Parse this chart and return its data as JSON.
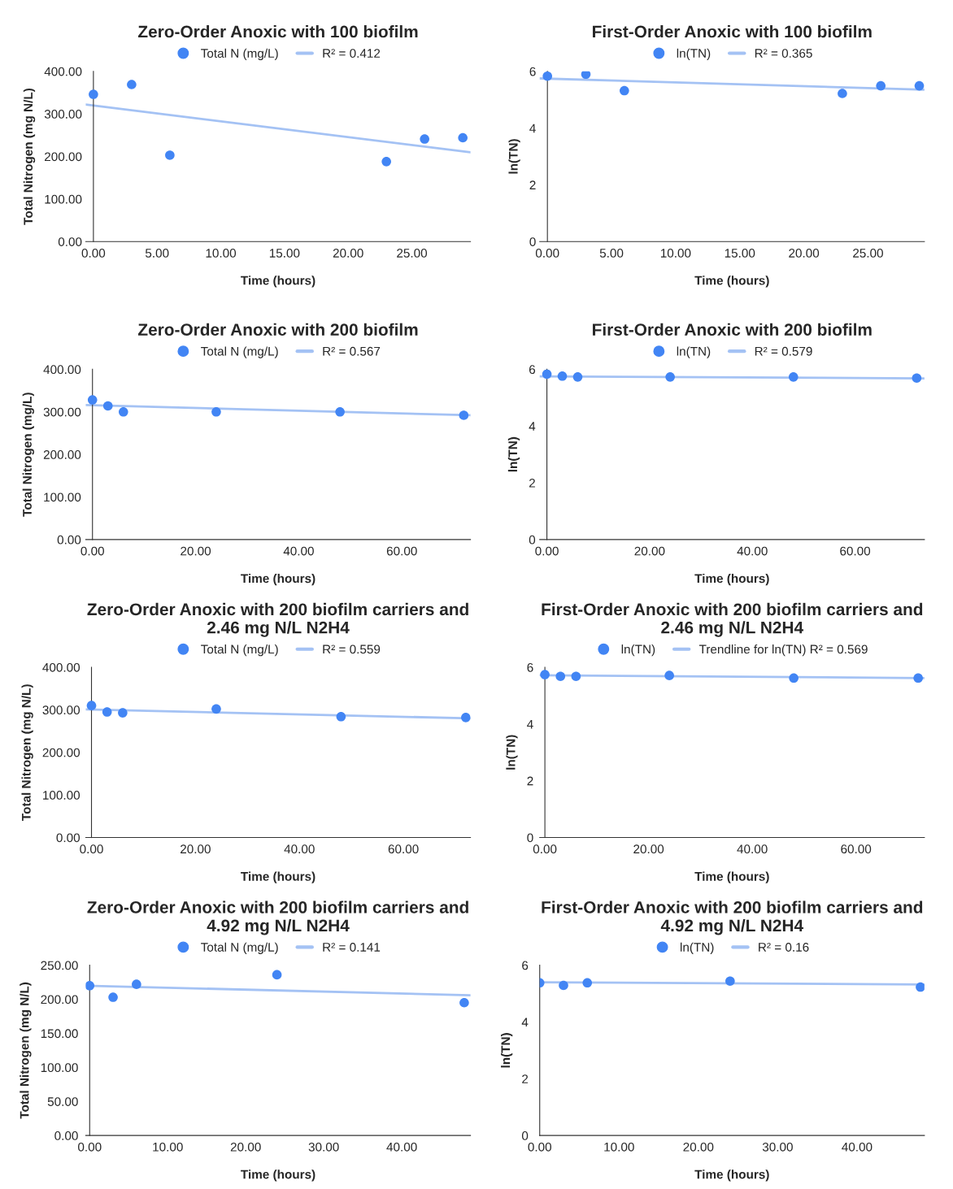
{
  "chart_data": [
    {
      "type": "scatter",
      "title": "Zero-Order Anoxic with 100 biofilm",
      "xlabel": "Time (hours)",
      "ylabel": "Total Nitrogen (mg N/L)",
      "legend": "top",
      "grid": false,
      "xlim": [
        -0.6,
        29.6
      ],
      "xticks": [
        {
          "value": 0,
          "label": "0.00"
        },
        {
          "value": 5,
          "label": "5.00"
        },
        {
          "value": 10,
          "label": "10.00"
        },
        {
          "value": 15,
          "label": "15.00"
        },
        {
          "value": 20,
          "label": "20.00"
        },
        {
          "value": 25,
          "label": "25.00"
        }
      ],
      "ylim": [
        0,
        400
      ],
      "yticks": [
        {
          "value": 0,
          "label": "0.00"
        },
        {
          "value": 100,
          "label": "100.00"
        },
        {
          "value": 200,
          "label": "200.00"
        },
        {
          "value": 300,
          "label": "300.00"
        },
        {
          "value": 400,
          "label": "400.00"
        }
      ],
      "series": [
        {
          "name": "Total N (mg/L)",
          "color": "#4285f4",
          "marker": "circle",
          "x": [
            0,
            3,
            6,
            23,
            26,
            29
          ],
          "values": [
            346,
            369,
            203,
            188,
            241,
            244
          ]
        },
        {
          "name": "R² = 0.412",
          "type": "line",
          "color": "#a4c2f4",
          "marker": "none",
          "x": [
            -0.6,
            29.6
          ],
          "values": [
            322,
            210
          ]
        }
      ]
    },
    {
      "type": "scatter",
      "title": "First-Order Anoxic with 100 biofilm",
      "xlabel": "Time (hours)",
      "ylabel": "ln(TN)",
      "legend": "top",
      "grid": false,
      "xlim": [
        -0.6,
        29.4
      ],
      "xticks": [
        {
          "value": 0,
          "label": "0.00"
        },
        {
          "value": 5,
          "label": "5.00"
        },
        {
          "value": 10,
          "label": "10.00"
        },
        {
          "value": 15,
          "label": "15.00"
        },
        {
          "value": 20,
          "label": "20.00"
        },
        {
          "value": 25,
          "label": "25.00"
        }
      ],
      "ylim": [
        0,
        6
      ],
      "yticks": [
        0,
        2,
        4,
        6
      ],
      "series": [
        {
          "name": "ln(TN)",
          "color": "#4285f4",
          "marker": "circle",
          "x": [
            0,
            3,
            6,
            23,
            26,
            29
          ],
          "values": [
            5.83,
            5.9,
            5.32,
            5.22,
            5.49,
            5.49
          ]
        },
        {
          "name": "R² = 0.365",
          "type": "line",
          "color": "#a4c2f4",
          "marker": "none",
          "x": [
            -0.6,
            29.4
          ],
          "values": [
            5.75,
            5.35
          ]
        }
      ]
    },
    {
      "type": "scatter",
      "title": "Zero-Order Anoxic with 200 biofilm",
      "xlabel": "Time (hours)",
      "ylabel": "Total Nitrogen (mg/L)",
      "legend": "top",
      "grid": false,
      "xlim": [
        -1.3,
        73.3
      ],
      "xticks": [
        {
          "value": 0,
          "label": "0.00"
        },
        {
          "value": 20,
          "label": "20.00"
        },
        {
          "value": 40,
          "label": "40.00"
        },
        {
          "value": 60,
          "label": "60.00"
        }
      ],
      "ylim": [
        0,
        400
      ],
      "yticks": [
        {
          "value": 0,
          "label": "0.00"
        },
        {
          "value": 100,
          "label": "100.00"
        },
        {
          "value": 200,
          "label": "200.00"
        },
        {
          "value": 300,
          "label": "300.00"
        },
        {
          "value": 400,
          "label": "400.00"
        }
      ],
      "series": [
        {
          "name": "Total N (mg/L)",
          "color": "#4285f4",
          "marker": "circle",
          "x": [
            0,
            3,
            6,
            24,
            48,
            72
          ],
          "values": [
            328,
            314,
            300,
            300,
            300,
            292
          ]
        },
        {
          "name": "R² = 0.567",
          "type": "line",
          "color": "#a4c2f4",
          "marker": "none",
          "x": [
            -1.3,
            73.3
          ],
          "values": [
            316,
            292
          ]
        }
      ]
    },
    {
      "type": "scatter",
      "title": "First-Order Anoxic with 200 biofilm",
      "xlabel": "Time (hours)",
      "ylabel": "ln(TN)",
      "legend": "top",
      "grid": false,
      "xlim": [
        -1.4,
        73.5
      ],
      "xticks": [
        {
          "value": 0,
          "label": "0.00"
        },
        {
          "value": 20,
          "label": "20.00"
        },
        {
          "value": 40,
          "label": "40.00"
        },
        {
          "value": 60,
          "label": "60.00"
        }
      ],
      "ylim": [
        0,
        6
      ],
      "yticks": [
        0,
        2,
        4,
        6
      ],
      "series": [
        {
          "name": "ln(TN)",
          "color": "#4285f4",
          "marker": "circle",
          "x": [
            0,
            3,
            6,
            24,
            48,
            72
          ],
          "values": [
            5.83,
            5.76,
            5.73,
            5.73,
            5.73,
            5.69
          ]
        },
        {
          "name": "R² = 0.579",
          "type": "line",
          "color": "#a4c2f4",
          "marker": "none",
          "x": [
            -1.4,
            73.5
          ],
          "values": [
            5.75,
            5.68
          ]
        }
      ]
    },
    {
      "type": "scatter",
      "title": "Zero-Order Anoxic with 200 biofilm carriers and 2.46 mg N/L N2H4",
      "xlabel": "Time (hours)",
      "ylabel": "Total Nitrogen (mg N/L)",
      "legend": "top",
      "grid": false,
      "xlim": [
        -1.1,
        72.9
      ],
      "xticks": [
        {
          "value": 0,
          "label": "0.00"
        },
        {
          "value": 20,
          "label": "20.00"
        },
        {
          "value": 40,
          "label": "40.00"
        },
        {
          "value": 60,
          "label": "60.00"
        }
      ],
      "ylim": [
        0,
        400
      ],
      "yticks": [
        {
          "value": 0,
          "label": "0.00"
        },
        {
          "value": 100,
          "label": "100.00"
        },
        {
          "value": 200,
          "label": "200.00"
        },
        {
          "value": 300,
          "label": "300.00"
        },
        {
          "value": 400,
          "label": "400.00"
        }
      ],
      "series": [
        {
          "name": "Total N (mg/L)",
          "color": "#4285f4",
          "marker": "circle",
          "x": [
            0,
            3,
            6,
            24,
            48,
            72
          ],
          "values": [
            310,
            295,
            293,
            302,
            284,
            282
          ]
        },
        {
          "name": "R² = 0.559",
          "type": "line",
          "color": "#a4c2f4",
          "marker": "none",
          "x": [
            -1.1,
            72.9
          ],
          "values": [
            301,
            280
          ]
        }
      ]
    },
    {
      "type": "scatter",
      "title": "First-Order Anoxic with 200 biofilm carriers and 2.46 mg N/L N2H4",
      "xlabel": "Time (hours)",
      "ylabel": "ln(TN)",
      "legend": "top",
      "grid": false,
      "xlim": [
        -1.0,
        73.2
      ],
      "xticks": [
        {
          "value": 0,
          "label": "0.00"
        },
        {
          "value": 20,
          "label": "20.00"
        },
        {
          "value": 40,
          "label": "40.00"
        },
        {
          "value": 60,
          "label": "60.00"
        }
      ],
      "ylim": [
        0,
        6
      ],
      "yticks": [
        0,
        2,
        4,
        6
      ],
      "series": [
        {
          "name": "ln(TN)",
          "color": "#4285f4",
          "marker": "circle",
          "x": [
            0,
            3,
            6,
            24,
            48,
            72
          ],
          "values": [
            5.74,
            5.68,
            5.68,
            5.71,
            5.62,
            5.62
          ]
        },
        {
          "name": "Trendline for ln(TN) R² = 0.569",
          "type": "line",
          "color": "#a4c2f4",
          "marker": "none",
          "x": [
            -1.0,
            73.2
          ],
          "values": [
            5.72,
            5.62
          ]
        }
      ]
    },
    {
      "type": "scatter",
      "title": "Zero-Order Anoxic with 200 biofilm carriers and 4.92 mg N/L N2H4",
      "xlabel": "Time (hours)",
      "ylabel": "Total Nitrogen (mg N/L)",
      "legend": "top",
      "grid": false,
      "xlim": [
        -0.5,
        48.8
      ],
      "xticks": [
        {
          "value": 0,
          "label": "0.00"
        },
        {
          "value": 10,
          "label": "10.00"
        },
        {
          "value": 20,
          "label": "20.00"
        },
        {
          "value": 30,
          "label": "30.00"
        },
        {
          "value": 40,
          "label": "40.00"
        }
      ],
      "ylim": [
        0,
        250
      ],
      "yticks": [
        {
          "value": 0,
          "label": "0.00"
        },
        {
          "value": 50,
          "label": "50.00"
        },
        {
          "value": 100,
          "label": "100.00"
        },
        {
          "value": 150,
          "label": "150.00"
        },
        {
          "value": 200,
          "label": "200.00"
        },
        {
          "value": 250,
          "label": "250.00"
        }
      ],
      "series": [
        {
          "name": "Total N (mg/L)",
          "color": "#4285f4",
          "marker": "circle",
          "x": [
            0,
            3,
            6,
            24,
            48
          ],
          "values": [
            220,
            203,
            222,
            236,
            195
          ]
        },
        {
          "name": "R² = 0.141",
          "type": "line",
          "color": "#a4c2f4",
          "marker": "none",
          "x": [
            -0.5,
            48.8
          ],
          "values": [
            220,
            206
          ]
        }
      ]
    },
    {
      "type": "scatter",
      "title": "First-Order Anoxic with 200 biofilm carriers and 4.92 mg N/L N2H4",
      "xlabel": "Time (hours)",
      "ylabel": "ln(TN)",
      "legend": "top",
      "grid": false,
      "xlim": [
        0,
        48.5
      ],
      "xticks": [
        {
          "value": 0,
          "label": "0.00"
        },
        {
          "value": 10,
          "label": "10.00"
        },
        {
          "value": 20,
          "label": "20.00"
        },
        {
          "value": 30,
          "label": "30.00"
        },
        {
          "value": 40,
          "label": "40.00"
        }
      ],
      "ylim": [
        0,
        6
      ],
      "yticks": [
        0,
        2,
        4,
        6
      ],
      "series": [
        {
          "name": "ln(TN)",
          "color": "#4285f4",
          "marker": "circle",
          "x": [
            0,
            3,
            6,
            24,
            48
          ],
          "values": [
            5.38,
            5.29,
            5.38,
            5.44,
            5.23
          ]
        },
        {
          "name": "R² = 0.16",
          "type": "line",
          "color": "#a4c2f4",
          "marker": "none",
          "x": [
            0,
            48.5
          ],
          "values": [
            5.4,
            5.32
          ]
        }
      ]
    }
  ]
}
